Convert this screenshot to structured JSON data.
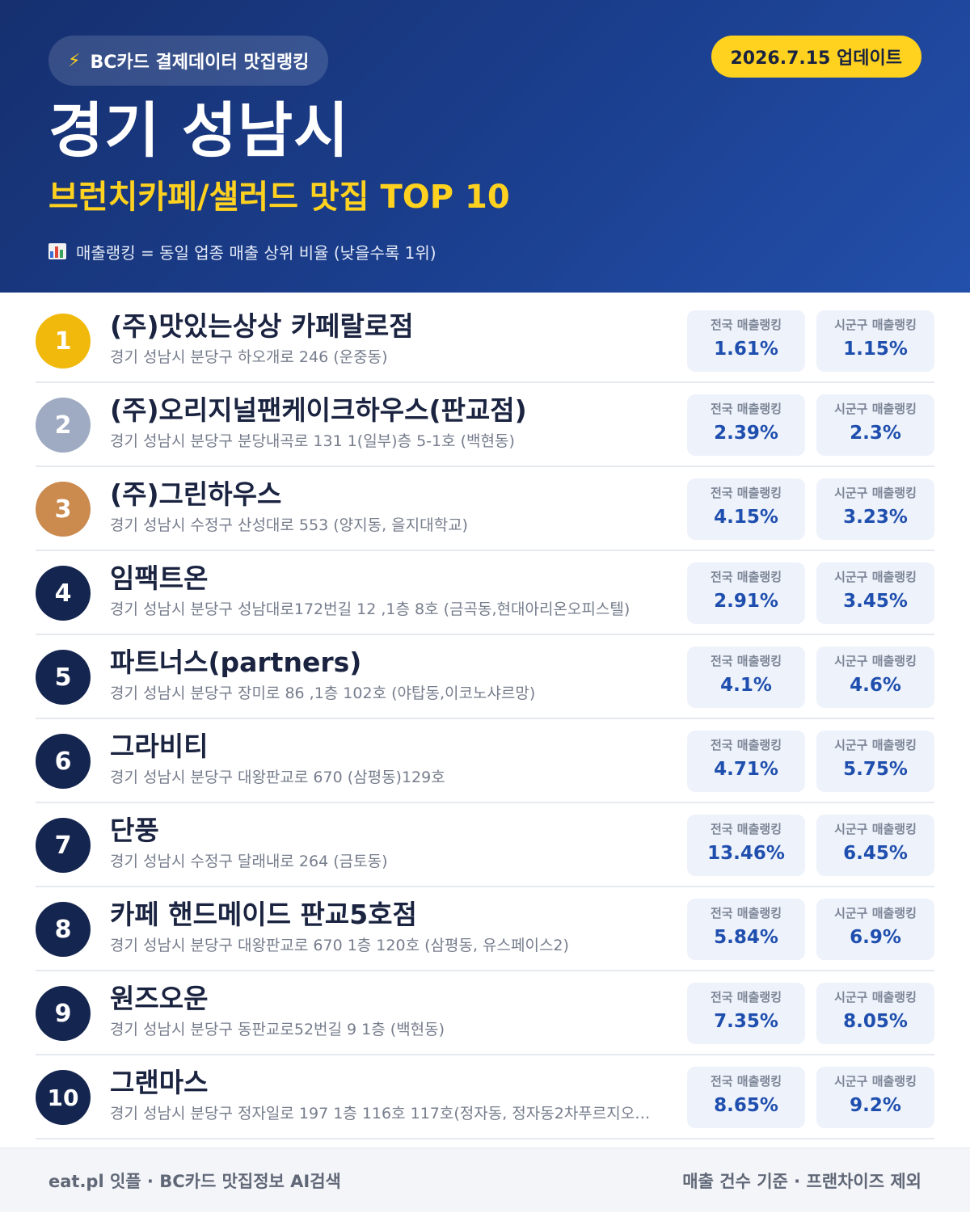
{
  "header": {
    "source_label": "BC카드 결제데이터 맛집랭킹",
    "source_icon": "lightning-bolt-icon",
    "update_label": "2026.7.15 업데이트",
    "city": "경기 성남시",
    "subtitle": "브런치카페/샐러드 맛집 TOP 10",
    "note_icon": "bar-chart-icon",
    "note": "매출랭킹 = 동일 업종 매출 상위 비율 (낮을수록 1위)"
  },
  "colors": {
    "header_bg": "#1b3f8f",
    "accent_yellow": "#ffd21f",
    "gold": "#f0b90b",
    "silver": "#9fabc2",
    "bronze": "#cb8a4e",
    "navy": "#14254f",
    "value_blue": "#1f4fae"
  },
  "labels": {
    "national": "전국 매출랭킹",
    "local": "시군구 매출랭킹"
  },
  "restaurants": [
    {
      "rank": "1",
      "name": "(주)맛있는상상 카페랄로점",
      "address": "경기 성남시 분당구 하오개로 246 (운중동)",
      "national": "1.61%",
      "local": "1.15%"
    },
    {
      "rank": "2",
      "name": "(주)오리지널팬케이크하우스(판교점)",
      "address": "경기 성남시 분당구 분당내곡로 131 1(일부)층 5-1호 (백현동)",
      "national": "2.39%",
      "local": "2.3%"
    },
    {
      "rank": "3",
      "name": "(주)그린하우스",
      "address": "경기 성남시 수정구 산성대로 553 (양지동, 을지대학교)",
      "national": "4.15%",
      "local": "3.23%"
    },
    {
      "rank": "4",
      "name": "임팩트온",
      "address": "경기 성남시 분당구 성남대로172번길 12 ,1층 8호 (금곡동,현대아리온오피스텔)",
      "national": "2.91%",
      "local": "3.45%"
    },
    {
      "rank": "5",
      "name": "파트너스(partners)",
      "address": "경기 성남시 분당구 장미로 86 ,1층 102호 (야탑동,이코노샤르망)",
      "national": "4.1%",
      "local": "4.6%"
    },
    {
      "rank": "6",
      "name": "그라비티",
      "address": "경기 성남시 분당구 대왕판교로 670 (삼평동)129호",
      "national": "4.71%",
      "local": "5.75%"
    },
    {
      "rank": "7",
      "name": "단풍",
      "address": "경기 성남시 수정구 달래내로 264 (금토동)",
      "national": "13.46%",
      "local": "6.45%"
    },
    {
      "rank": "8",
      "name": "카페 핸드메이드 판교5호점",
      "address": "경기 성남시 분당구 대왕판교로 670 1층 120호 (삼평동, 유스페이스2)",
      "national": "5.84%",
      "local": "6.9%"
    },
    {
      "rank": "9",
      "name": "원즈오운",
      "address": "경기 성남시 분당구 동판교로52번길 9 1층 (백현동)",
      "national": "7.35%",
      "local": "8.05%"
    },
    {
      "rank": "10",
      "name": "그랜마스",
      "address": "경기 성남시 분당구 정자일로 197 1층 116호 117호(정자동, 정자동2차푸르지오…",
      "national": "8.65%",
      "local": "9.2%"
    }
  ],
  "footer": {
    "left": "eat.pl 잇플 · BC카드 맛집정보 AI검색",
    "right": "매출 건수 기준 · 프랜차이즈 제외"
  }
}
